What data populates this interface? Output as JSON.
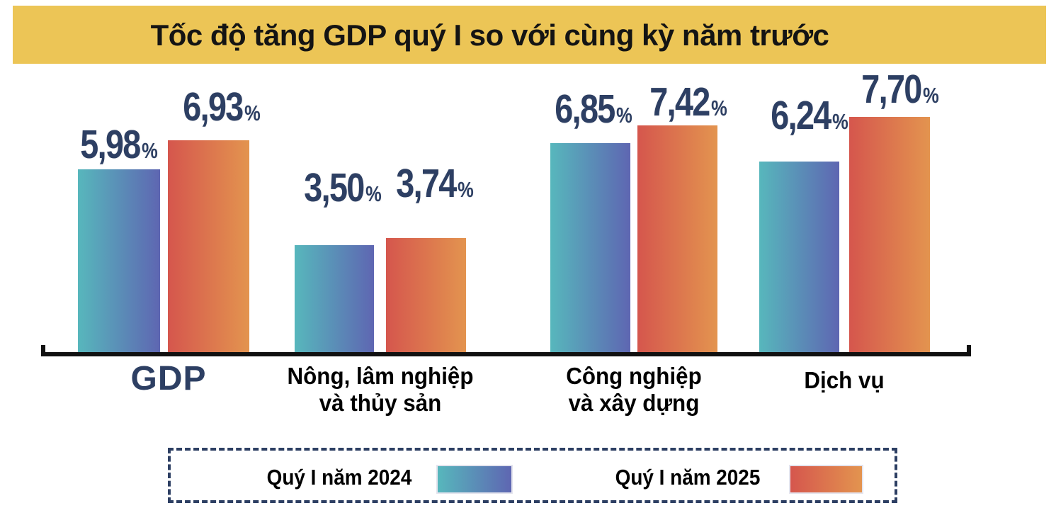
{
  "title": "Tốc độ tăng GDP quý I so với cùng kỳ năm trước",
  "percent_sign": "%",
  "colors": {
    "title_bg": "#ecc556",
    "navy": "#2d3f63",
    "axis": "#111111",
    "bar_2024_start": "#57b7bc",
    "bar_2024_end": "#5e66b2",
    "bar_2025_start": "#d5564d",
    "bar_2025_end": "#e3944f"
  },
  "legend": {
    "items": [
      {
        "label": "Quý I năm 2024"
      },
      {
        "label": "Quý I năm 2025"
      }
    ]
  },
  "chart_data": {
    "type": "bar",
    "title": "Tốc độ tăng GDP quý I so với cùng kỳ năm trước",
    "categories": [
      "GDP",
      "Nông, lâm nghiệp\nvà thủy sản",
      "Công nghiệp\nvà xây dựng",
      "Dịch vụ"
    ],
    "series": [
      {
        "name": "Quý I năm 2024",
        "values": [
          5.98,
          3.5,
          6.85,
          6.24
        ],
        "labels": [
          "5,98",
          "3,50",
          "6,85",
          "6,24"
        ]
      },
      {
        "name": "Quý I năm 2025",
        "values": [
          6.93,
          3.74,
          7.42,
          7.7
        ],
        "labels": [
          "6,93",
          "3,74",
          "7,42",
          "7,70"
        ]
      }
    ],
    "unit": "%",
    "ylim": [
      0,
      8
    ],
    "grid": false,
    "legend_position": "bottom"
  }
}
